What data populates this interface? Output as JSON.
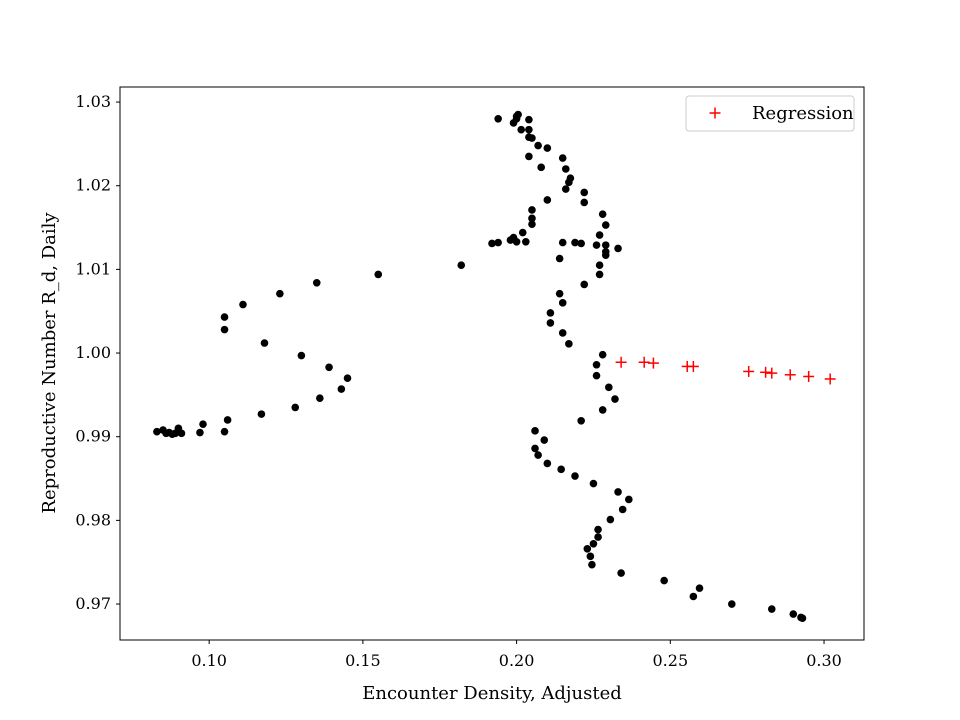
{
  "chart_data": {
    "type": "scatter",
    "title": "",
    "xlabel": "Encounter Density, Adjusted",
    "ylabel": "Reproductive Number R_d, Daily",
    "xlim": [
      0.071,
      0.313
    ],
    "ylim": [
      0.9657,
      1.0318
    ],
    "xticks": [
      0.1,
      0.15,
      0.2,
      0.25,
      0.3
    ],
    "xtick_labels": [
      "0.10",
      "0.15",
      "0.20",
      "0.25",
      "0.30"
    ],
    "yticks": [
      0.97,
      0.98,
      0.99,
      1.0,
      1.01,
      1.02,
      1.03
    ],
    "ytick_labels": [
      "0.97",
      "0.98",
      "0.99",
      "1.00",
      "1.01",
      "1.02",
      "1.03"
    ],
    "grid": false,
    "legend_position": "top-right",
    "series": [
      {
        "name": "Observed",
        "marker": "circle",
        "color": "#000000",
        "in_legend": false,
        "points": [
          [
            0.194,
            1.028
          ],
          [
            0.199,
            1.0275
          ],
          [
            0.2,
            1.0283
          ],
          [
            0.2005,
            1.0285
          ],
          [
            0.2,
            1.028
          ],
          [
            0.204,
            1.0279
          ],
          [
            0.2015,
            1.0267
          ],
          [
            0.204,
            1.0267
          ],
          [
            0.204,
            1.0258
          ],
          [
            0.205,
            1.0257
          ],
          [
            0.207,
            1.0248
          ],
          [
            0.21,
            1.0245
          ],
          [
            0.204,
            1.0235
          ],
          [
            0.215,
            1.0233
          ],
          [
            0.208,
            1.0222
          ],
          [
            0.216,
            1.022
          ],
          [
            0.217,
            1.0204
          ],
          [
            0.2175,
            1.0209
          ],
          [
            0.216,
            1.0196
          ],
          [
            0.222,
            1.0192
          ],
          [
            0.222,
            1.018
          ],
          [
            0.21,
            1.0183
          ],
          [
            0.205,
            1.0171
          ],
          [
            0.228,
            1.0166
          ],
          [
            0.205,
            1.0161
          ],
          [
            0.229,
            1.0153
          ],
          [
            0.205,
            1.0154
          ],
          [
            0.202,
            1.0144
          ],
          [
            0.227,
            1.0141
          ],
          [
            0.199,
            1.0138
          ],
          [
            0.198,
            1.0135
          ],
          [
            0.2,
            1.0133
          ],
          [
            0.203,
            1.0133
          ],
          [
            0.194,
            1.0132
          ],
          [
            0.192,
            1.0131
          ],
          [
            0.215,
            1.0132
          ],
          [
            0.219,
            1.0132
          ],
          [
            0.221,
            1.0131
          ],
          [
            0.226,
            1.0129
          ],
          [
            0.229,
            1.0129
          ],
          [
            0.233,
            1.0125
          ],
          [
            0.229,
            1.0117
          ],
          [
            0.229,
            1.0121
          ],
          [
            0.214,
            1.0113
          ],
          [
            0.227,
            1.0105
          ],
          [
            0.182,
            1.0105
          ],
          [
            0.227,
            1.0094
          ],
          [
            0.155,
            1.0094
          ],
          [
            0.135,
            1.0084
          ],
          [
            0.222,
            1.0082
          ],
          [
            0.123,
            1.0071
          ],
          [
            0.214,
            1.0071
          ],
          [
            0.215,
            1.006
          ],
          [
            0.111,
            1.0058
          ],
          [
            0.211,
            1.0048
          ],
          [
            0.105,
            1.0043
          ],
          [
            0.211,
            1.0036
          ],
          [
            0.105,
            1.0028
          ],
          [
            0.215,
            1.0024
          ],
          [
            0.118,
            1.0012
          ],
          [
            0.217,
            1.0011
          ],
          [
            0.13,
            0.9997
          ],
          [
            0.228,
            0.9998
          ],
          [
            0.226,
            0.9986
          ],
          [
            0.139,
            0.9983
          ],
          [
            0.226,
            0.9973
          ],
          [
            0.145,
            0.997
          ],
          [
            0.23,
            0.9959
          ],
          [
            0.143,
            0.9957
          ],
          [
            0.136,
            0.9946
          ],
          [
            0.232,
            0.9945
          ],
          [
            0.128,
            0.9935
          ],
          [
            0.228,
            0.9932
          ],
          [
            0.117,
            0.9927
          ],
          [
            0.106,
            0.992
          ],
          [
            0.221,
            0.9919
          ],
          [
            0.098,
            0.9915
          ],
          [
            0.09,
            0.991
          ],
          [
            0.085,
            0.9908
          ],
          [
            0.083,
            0.9906
          ],
          [
            0.087,
            0.9905
          ],
          [
            0.089,
            0.9904
          ],
          [
            0.091,
            0.9904
          ],
          [
            0.097,
            0.9905
          ],
          [
            0.105,
            0.9906
          ],
          [
            0.088,
            0.9903
          ],
          [
            0.086,
            0.9904
          ],
          [
            0.206,
            0.9907
          ],
          [
            0.209,
            0.9896
          ],
          [
            0.206,
            0.9886
          ],
          [
            0.207,
            0.9878
          ],
          [
            0.21,
            0.9868
          ],
          [
            0.2145,
            0.9861
          ],
          [
            0.219,
            0.9853
          ],
          [
            0.225,
            0.9844
          ],
          [
            0.233,
            0.9834
          ],
          [
            0.2365,
            0.9825
          ],
          [
            0.2345,
            0.9813
          ],
          [
            0.2305,
            0.9801
          ],
          [
            0.2265,
            0.9789
          ],
          [
            0.2265,
            0.978
          ],
          [
            0.225,
            0.9772
          ],
          [
            0.223,
            0.9766
          ],
          [
            0.224,
            0.9757
          ],
          [
            0.2245,
            0.9747
          ],
          [
            0.234,
            0.9737
          ],
          [
            0.248,
            0.9728
          ],
          [
            0.2595,
            0.9719
          ],
          [
            0.2575,
            0.9709
          ],
          [
            0.27,
            0.97
          ],
          [
            0.283,
            0.9694
          ],
          [
            0.29,
            0.9688
          ],
          [
            0.2925,
            0.9684
          ],
          [
            0.293,
            0.9683
          ]
        ]
      },
      {
        "name": "Regression",
        "marker": "plus",
        "color": "#ff0000",
        "in_legend": true,
        "points": [
          [
            0.234,
            0.9989
          ],
          [
            0.2415,
            0.9989
          ],
          [
            0.2445,
            0.9988
          ],
          [
            0.2555,
            0.9984
          ],
          [
            0.2575,
            0.9984
          ],
          [
            0.2755,
            0.9978
          ],
          [
            0.281,
            0.9977
          ],
          [
            0.283,
            0.9976
          ],
          [
            0.289,
            0.9974
          ],
          [
            0.295,
            0.9972
          ],
          [
            0.302,
            0.9969
          ]
        ]
      }
    ],
    "legend": {
      "entries": [
        "Regression"
      ]
    }
  }
}
